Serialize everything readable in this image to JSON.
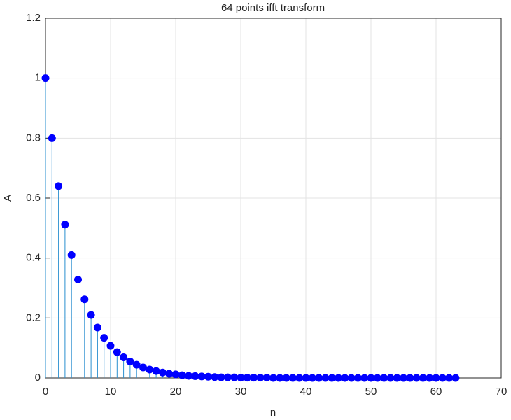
{
  "chart_data": {
    "type": "stem",
    "title": "64 points ifft transform",
    "x_label": "n",
    "y_label": "A",
    "x": [
      0,
      1,
      2,
      3,
      4,
      5,
      6,
      7,
      8,
      9,
      10,
      11,
      12,
      13,
      14,
      15,
      16,
      17,
      18,
      19,
      20,
      21,
      22,
      23,
      24,
      25,
      26,
      27,
      28,
      29,
      30,
      31,
      32,
      33,
      34,
      35,
      36,
      37,
      38,
      39,
      40,
      41,
      42,
      43,
      44,
      45,
      46,
      47,
      48,
      49,
      50,
      51,
      52,
      53,
      54,
      55,
      56,
      57,
      58,
      59,
      60,
      61,
      62,
      63
    ],
    "values": [
      1,
      0.8,
      0.64,
      0.512,
      0.41,
      0.328,
      0.262,
      0.21,
      0.168,
      0.134,
      0.107,
      0.086,
      0.069,
      0.055,
      0.044,
      0.035,
      0.028,
      0.023,
      0.018,
      0.014,
      0.012,
      0.009,
      0.007,
      0.006,
      0.005,
      0.004,
      0.003,
      0.002,
      0.002,
      0.002,
      0.001,
      0.001,
      0.001,
      0.001,
      0.001,
      0,
      0,
      0,
      0,
      0,
      0,
      0,
      0,
      0,
      0,
      0,
      0,
      0,
      0,
      0,
      0,
      0,
      0,
      0,
      0,
      0,
      0,
      0,
      0,
      0,
      0,
      0,
      0,
      0
    ],
    "color": "#2a8fcf",
    "marker_color": "#0000ff",
    "xlim": [
      0,
      70
    ],
    "xticks": [
      0,
      10,
      20,
      30,
      40,
      50,
      60,
      70
    ],
    "ylim": [
      0,
      1.2
    ],
    "yticks": [
      0,
      0.2,
      0.4,
      0.6,
      0.8,
      1,
      1.2
    ],
    "grid": true
  }
}
